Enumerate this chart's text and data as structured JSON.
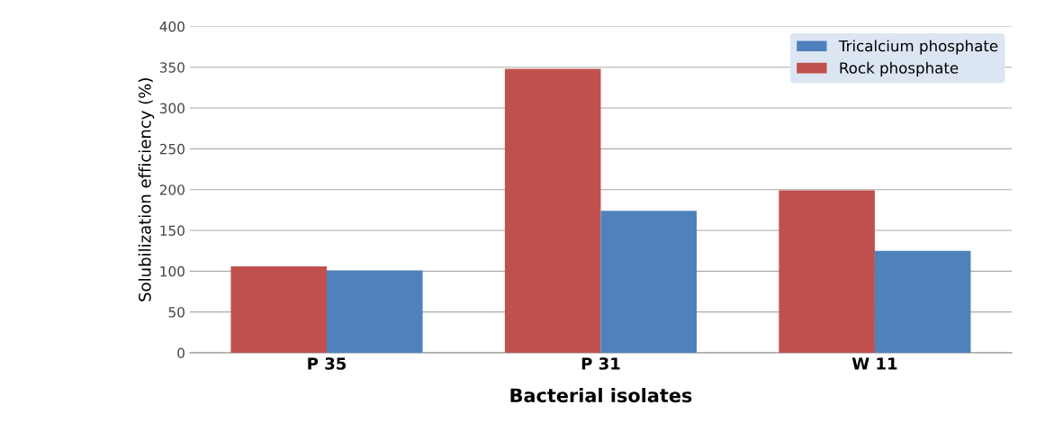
{
  "chart_data": {
    "type": "bar",
    "xlabel": "Bacterial isolates",
    "ylabel": "Solubilization efficiency (%)",
    "categories": [
      "P 35",
      "P 31",
      "W 11"
    ],
    "series": [
      {
        "name": "Rock phosphate",
        "color": "#c0504d",
        "values": [
          106,
          348,
          199
        ]
      },
      {
        "name": "Tricalcium phosphate",
        "color": "#4f81bd",
        "values": [
          101,
          174,
          125
        ]
      }
    ],
    "ylim": [
      0,
      400
    ],
    "yticks": [
      0,
      50,
      100,
      150,
      200,
      250,
      300,
      350,
      400
    ],
    "grid": "y",
    "legend": "top right"
  }
}
